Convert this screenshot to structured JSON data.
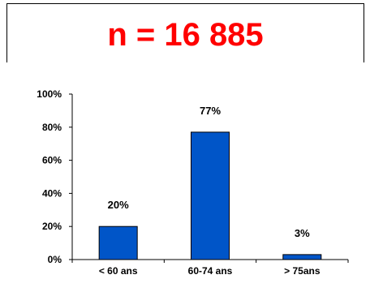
{
  "chart_data": {
    "type": "bar",
    "title": "n = 16 885",
    "categories": [
      "< 60 ans",
      "60-74 ans",
      "> 75ans"
    ],
    "values": [
      20,
      77,
      3
    ],
    "value_labels": [
      "20%",
      "77%",
      "3%"
    ],
    "ylim": [
      0,
      100
    ],
    "yticks": [
      0,
      20,
      40,
      60,
      80,
      100
    ],
    "ytick_labels": [
      "0%",
      "20%",
      "40%",
      "60%",
      "80%",
      "100%"
    ],
    "xlabel": "",
    "ylabel": "",
    "grid": false,
    "bar_color": "#0055c8",
    "title_color": "#ff0000"
  }
}
